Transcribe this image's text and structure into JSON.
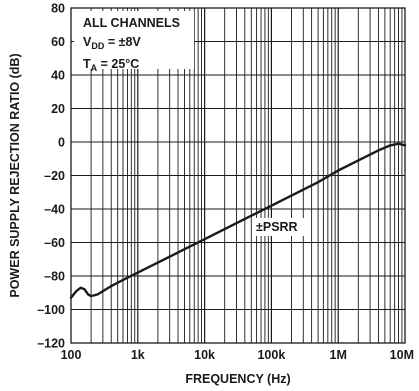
{
  "chart_data": {
    "type": "line",
    "title": "",
    "xlabel": "FREQUENCY (Hz)",
    "ylabel": "POWER SUPPLY REJECTION RATIO (dB)",
    "x_scale": "log",
    "xlim": [
      100,
      10000000
    ],
    "ylim": [
      -120,
      80
    ],
    "grid": true,
    "x_ticks": [
      100,
      1000,
      10000,
      100000,
      1000000,
      10000000
    ],
    "x_tick_labels": [
      "100",
      "1k",
      "10k",
      "100k",
      "1M",
      "10M"
    ],
    "y_ticks": [
      -120,
      -100,
      -80,
      -60,
      -40,
      -20,
      0,
      20,
      40,
      60,
      80
    ],
    "y_tick_labels": [
      "–120",
      "–100",
      "–80",
      "–60",
      "–40",
      "–20",
      "0",
      "20",
      "40",
      "60",
      "80"
    ],
    "annotations": {
      "line1": "ALL CHANNELS",
      "vdd_main": "V",
      "vdd_sub": "DD",
      "vdd_value": " = ±8V",
      "ta_main": "T",
      "ta_sub": "A",
      "ta_value": " = 25°C"
    },
    "series": [
      {
        "name": "±PSRR",
        "x": [
          100,
          120,
          140,
          160,
          180,
          200,
          250,
          300,
          400,
          500,
          700,
          1000,
          2000,
          5000,
          10000,
          20000,
          50000,
          100000,
          200000,
          500000,
          1000000,
          2000000,
          4000000,
          6000000,
          8000000,
          10000000
        ],
        "y": [
          -93,
          -89,
          -87,
          -88,
          -91,
          -92,
          -91,
          -89,
          -86,
          -84,
          -81,
          -78,
          -72,
          -64,
          -58,
          -52,
          -44,
          -38,
          -32,
          -24,
          -17,
          -11,
          -5,
          -2,
          -1,
          -2
        ]
      }
    ]
  }
}
